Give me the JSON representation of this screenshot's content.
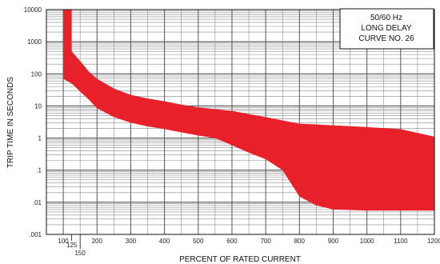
{
  "chart_data": {
    "type": "area",
    "title_lines": [
      "50/60 Hz",
      "LONG DELAY",
      "CURVE NO. 26"
    ],
    "xlabel": "PERCENT OF RATED CURRENT",
    "ylabel": "TRIP TIME IN SECONDS",
    "xlim": [
      100,
      1200
    ],
    "ylim": [
      0.001,
      10000
    ],
    "y_scale": "log",
    "grid": true,
    "legend_position": "top-right",
    "x_ticks": [
      {
        "value": 100,
        "label": "100"
      },
      {
        "value": 200,
        "label": "200"
      },
      {
        "value": 300,
        "label": "300"
      },
      {
        "value": 400,
        "label": "400"
      },
      {
        "value": 500,
        "label": "500"
      },
      {
        "value": 600,
        "label": "600"
      },
      {
        "value": 700,
        "label": "700"
      },
      {
        "value": 800,
        "label": "800"
      },
      {
        "value": 900,
        "label": "900"
      },
      {
        "value": 1000,
        "label": "1000"
      },
      {
        "value": 1100,
        "label": "1100"
      },
      {
        "value": 1200,
        "label": "1200"
      }
    ],
    "x_extra_ticks": [
      {
        "value": 125,
        "label": "125"
      },
      {
        "value": 150,
        "label": "150"
      }
    ],
    "y_ticks": [
      {
        "value": 10000,
        "label": "10000"
      },
      {
        "value": 1000,
        "label": "1000"
      },
      {
        "value": 100,
        "label": "100"
      },
      {
        "value": 10,
        "label": "10"
      },
      {
        "value": 1,
        "label": "1"
      },
      {
        "value": 0.1,
        "label": ".1"
      },
      {
        "value": 0.01,
        "label": ".01"
      },
      {
        "value": 0.001,
        "label": ".001"
      }
    ],
    "band_color": "#e8202a",
    "upper_curve": [
      [
        125,
        10000
      ],
      [
        125,
        1000
      ],
      [
        125,
        500
      ],
      [
        150,
        250
      ],
      [
        175,
        120
      ],
      [
        200,
        70
      ],
      [
        250,
        35
      ],
      [
        300,
        22
      ],
      [
        350,
        17
      ],
      [
        400,
        14
      ],
      [
        450,
        11
      ],
      [
        500,
        9
      ],
      [
        600,
        7
      ],
      [
        700,
        4.5
      ],
      [
        800,
        2.8
      ],
      [
        900,
        2.5
      ],
      [
        1000,
        2.2
      ],
      [
        1100,
        1.9
      ],
      [
        1200,
        1.1
      ]
    ],
    "lower_curve": [
      [
        100,
        10000
      ],
      [
        100,
        70
      ],
      [
        125,
        50
      ],
      [
        150,
        28
      ],
      [
        175,
        16
      ],
      [
        200,
        8.5
      ],
      [
        250,
        4.5
      ],
      [
        300,
        3
      ],
      [
        350,
        2.3
      ],
      [
        400,
        1.9
      ],
      [
        450,
        1.5
      ],
      [
        500,
        1.2
      ],
      [
        550,
        1
      ],
      [
        600,
        0.6
      ],
      [
        650,
        0.35
      ],
      [
        700,
        0.22
      ],
      [
        750,
        0.1
      ],
      [
        800,
        0.015
      ],
      [
        850,
        0.008
      ],
      [
        900,
        0.006
      ],
      [
        1000,
        0.0055
      ],
      [
        1100,
        0.0055
      ],
      [
        1200,
        0.0055
      ]
    ]
  }
}
